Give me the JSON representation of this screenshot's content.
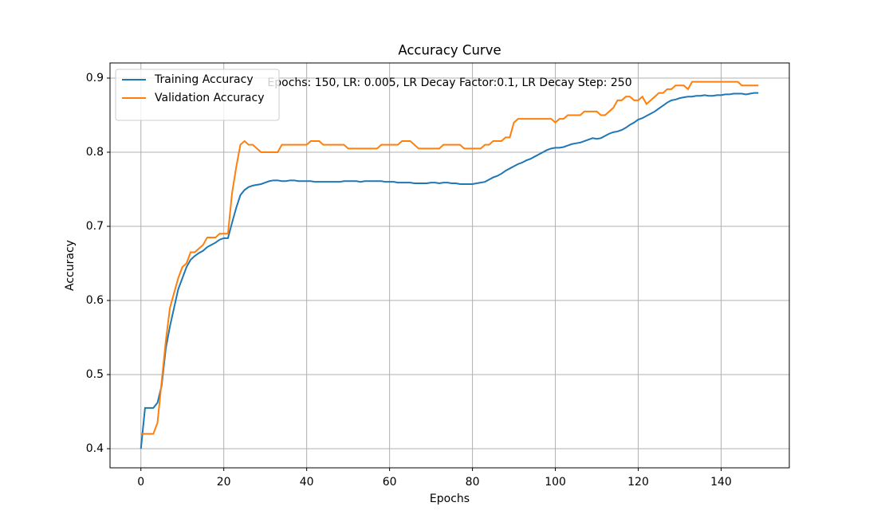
{
  "chart_data": {
    "type": "line",
    "title": "Accuracy Curve",
    "xlabel": "Epochs",
    "ylabel": "Accuracy",
    "annotation": "Epochs: 150, LR: 0.005, LR Decay Factor:0.1, LR Decay Step: 250",
    "x": [
      0,
      1,
      2,
      3,
      4,
      5,
      6,
      7,
      8,
      9,
      10,
      11,
      12,
      13,
      14,
      15,
      16,
      17,
      18,
      19,
      20,
      21,
      22,
      23,
      24,
      25,
      26,
      27,
      28,
      29,
      30,
      31,
      32,
      33,
      34,
      35,
      36,
      37,
      38,
      39,
      40,
      41,
      42,
      43,
      44,
      45,
      46,
      47,
      48,
      49,
      50,
      51,
      52,
      53,
      54,
      55,
      56,
      57,
      58,
      59,
      60,
      61,
      62,
      63,
      64,
      65,
      66,
      67,
      68,
      69,
      70,
      71,
      72,
      73,
      74,
      75,
      76,
      77,
      78,
      79,
      80,
      81,
      82,
      83,
      84,
      85,
      86,
      87,
      88,
      89,
      90,
      91,
      92,
      93,
      94,
      95,
      96,
      97,
      98,
      99,
      100,
      101,
      102,
      103,
      104,
      105,
      106,
      107,
      108,
      109,
      110,
      111,
      112,
      113,
      114,
      115,
      116,
      117,
      118,
      119,
      120,
      121,
      122,
      123,
      124,
      125,
      126,
      127,
      128,
      129,
      130,
      131,
      132,
      133,
      134,
      135,
      136,
      137,
      138,
      139,
      140,
      141,
      142,
      143,
      144,
      145,
      146,
      147,
      148,
      149
    ],
    "series": [
      {
        "name": "Training Accuracy",
        "color": "#1f77b4",
        "values": [
          0.4,
          0.455,
          0.455,
          0.455,
          0.462,
          0.485,
          0.535,
          0.565,
          0.59,
          0.615,
          0.63,
          0.645,
          0.655,
          0.66,
          0.664,
          0.667,
          0.672,
          0.675,
          0.678,
          0.682,
          0.684,
          0.684,
          0.705,
          0.725,
          0.742,
          0.749,
          0.753,
          0.755,
          0.756,
          0.757,
          0.759,
          0.761,
          0.762,
          0.762,
          0.761,
          0.761,
          0.762,
          0.762,
          0.761,
          0.761,
          0.761,
          0.761,
          0.76,
          0.76,
          0.76,
          0.76,
          0.76,
          0.76,
          0.76,
          0.761,
          0.761,
          0.761,
          0.761,
          0.76,
          0.761,
          0.761,
          0.761,
          0.761,
          0.761,
          0.76,
          0.76,
          0.76,
          0.759,
          0.759,
          0.759,
          0.759,
          0.758,
          0.758,
          0.758,
          0.758,
          0.759,
          0.759,
          0.758,
          0.759,
          0.759,
          0.758,
          0.758,
          0.757,
          0.757,
          0.757,
          0.757,
          0.758,
          0.759,
          0.76,
          0.763,
          0.766,
          0.768,
          0.771,
          0.775,
          0.778,
          0.781,
          0.784,
          0.786,
          0.789,
          0.791,
          0.794,
          0.797,
          0.8,
          0.803,
          0.805,
          0.806,
          0.806,
          0.807,
          0.809,
          0.811,
          0.812,
          0.813,
          0.815,
          0.817,
          0.819,
          0.818,
          0.819,
          0.822,
          0.825,
          0.827,
          0.828,
          0.83,
          0.833,
          0.837,
          0.84,
          0.844,
          0.846,
          0.849,
          0.852,
          0.855,
          0.859,
          0.863,
          0.867,
          0.87,
          0.871,
          0.873,
          0.874,
          0.875,
          0.875,
          0.876,
          0.876,
          0.877,
          0.876,
          0.876,
          0.877,
          0.877,
          0.878,
          0.878,
          0.879,
          0.879,
          0.879,
          0.878,
          0.879,
          0.88,
          0.88
        ]
      },
      {
        "name": "Validation Accuracy",
        "color": "#ff7f0e",
        "values": [
          0.42,
          0.42,
          0.42,
          0.42,
          0.435,
          0.49,
          0.545,
          0.59,
          0.61,
          0.63,
          0.645,
          0.65,
          0.665,
          0.665,
          0.67,
          0.675,
          0.685,
          0.685,
          0.685,
          0.69,
          0.69,
          0.69,
          0.745,
          0.78,
          0.81,
          0.815,
          0.81,
          0.81,
          0.805,
          0.8,
          0.8,
          0.8,
          0.8,
          0.8,
          0.81,
          0.81,
          0.81,
          0.81,
          0.81,
          0.81,
          0.81,
          0.815,
          0.815,
          0.815,
          0.81,
          0.81,
          0.81,
          0.81,
          0.81,
          0.81,
          0.805,
          0.805,
          0.805,
          0.805,
          0.805,
          0.805,
          0.805,
          0.805,
          0.81,
          0.81,
          0.81,
          0.81,
          0.81,
          0.815,
          0.815,
          0.815,
          0.81,
          0.805,
          0.805,
          0.805,
          0.805,
          0.805,
          0.805,
          0.81,
          0.81,
          0.81,
          0.81,
          0.81,
          0.805,
          0.805,
          0.805,
          0.805,
          0.805,
          0.81,
          0.81,
          0.815,
          0.815,
          0.815,
          0.82,
          0.82,
          0.84,
          0.845,
          0.845,
          0.845,
          0.845,
          0.845,
          0.845,
          0.845,
          0.845,
          0.845,
          0.84,
          0.845,
          0.845,
          0.85,
          0.85,
          0.85,
          0.85,
          0.855,
          0.855,
          0.855,
          0.855,
          0.85,
          0.85,
          0.855,
          0.86,
          0.87,
          0.87,
          0.875,
          0.875,
          0.87,
          0.87,
          0.875,
          0.865,
          0.87,
          0.875,
          0.88,
          0.88,
          0.885,
          0.885,
          0.89,
          0.89,
          0.89,
          0.885,
          0.895,
          0.895,
          0.895,
          0.895,
          0.895,
          0.895,
          0.895,
          0.895,
          0.895,
          0.895,
          0.895,
          0.895,
          0.89,
          0.89,
          0.89,
          0.89,
          0.89
        ]
      }
    ],
    "xlim": [
      -7.45,
      156.45
    ],
    "ylim": [
      0.3742,
      0.9204
    ],
    "xticks": [
      0,
      20,
      40,
      60,
      80,
      100,
      120,
      140
    ],
    "yticks": [
      0.4,
      0.5,
      0.6,
      0.7,
      0.8,
      0.9
    ],
    "grid": true,
    "legend": "upper left"
  }
}
